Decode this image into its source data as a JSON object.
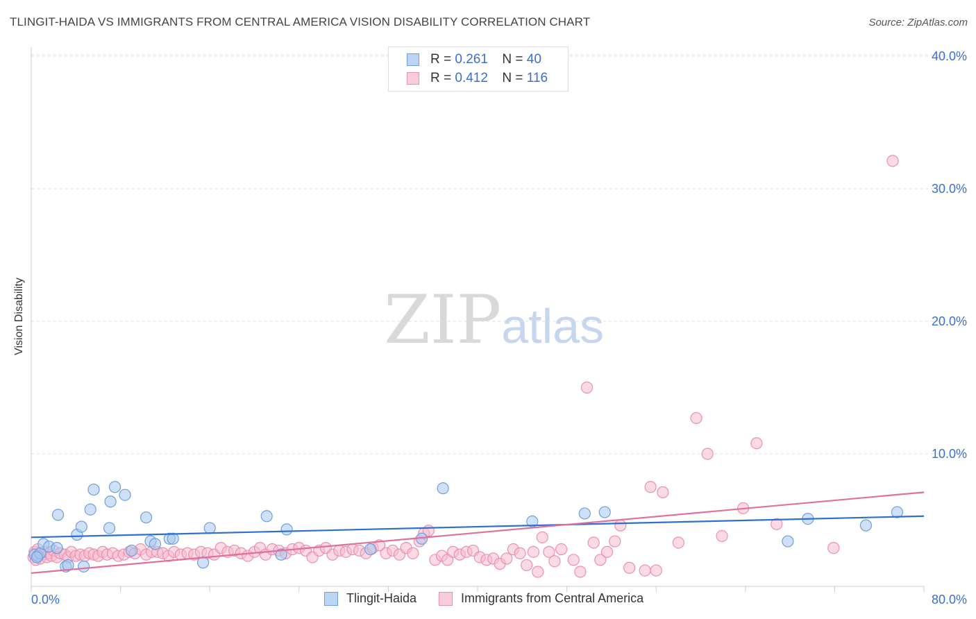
{
  "title": "TLINGIT-HAIDA VS IMMIGRANTS FROM CENTRAL AMERICA VISION DISABILITY CORRELATION CHART",
  "source": "Source: ZipAtlas.com",
  "watermark": {
    "zip": "ZIP",
    "atlas": "atlas"
  },
  "legend": {
    "rows": [
      {
        "r_label": "R =",
        "r_value": "0.261",
        "n_label": "N =",
        "n_value": "40"
      },
      {
        "r_label": "R =",
        "r_value": "0.412",
        "n_label": "N =",
        "n_value": "116"
      }
    ]
  },
  "colors": {
    "blue_fill": "#a8c8f0",
    "blue_edge": "#6e9fdc",
    "blue_line": "#2e6fd0",
    "pink_fill": "#f6bcd0",
    "pink_edge": "#ec8fae",
    "pink_line": "#e0709a",
    "grid": "#dddddd",
    "tick_label": "#3a6fd0"
  },
  "chart_data": {
    "type": "scatter",
    "title": "TLINGIT-HAIDA VS IMMIGRANTS FROM CENTRAL AMERICA VISION DISABILITY CORRELATION CHART",
    "xlabel": "",
    "ylabel": "Vision Disability",
    "xlim": [
      0,
      80
    ],
    "ylim": [
      0,
      42
    ],
    "x_tick_labels": [
      "0.0%",
      "80.0%"
    ],
    "y_ticks": [
      10,
      20,
      30,
      40
    ],
    "y_tick_labels": [
      "10.0%",
      "20.0%",
      "30.0%",
      "40.0%"
    ],
    "grid": "horizontal dashed",
    "series": [
      {
        "name": "Tlingit-Haida",
        "r": 0.261,
        "n": 40,
        "trend": [
          [
            0,
            3.7
          ],
          [
            80,
            5.3
          ]
        ],
        "points": [
          [
            0.3,
            2.4
          ],
          [
            0.6,
            2.3
          ],
          [
            0.8,
            2.5
          ],
          [
            1.1,
            3.2
          ],
          [
            1.6,
            3.0
          ],
          [
            2.3,
            2.9
          ],
          [
            2.4,
            5.4
          ],
          [
            3.1,
            1.5
          ],
          [
            3.3,
            1.6
          ],
          [
            4.1,
            3.9
          ],
          [
            4.5,
            4.5
          ],
          [
            4.7,
            1.5
          ],
          [
            5.3,
            5.8
          ],
          [
            5.6,
            7.3
          ],
          [
            7.0,
            4.4
          ],
          [
            7.1,
            6.4
          ],
          [
            7.5,
            7.5
          ],
          [
            8.4,
            6.9
          ],
          [
            9.0,
            2.7
          ],
          [
            10.3,
            5.2
          ],
          [
            10.7,
            3.4
          ],
          [
            11.1,
            3.2
          ],
          [
            12.4,
            3.6
          ],
          [
            12.7,
            3.6
          ],
          [
            15.4,
            1.8
          ],
          [
            16.0,
            4.4
          ],
          [
            21.1,
            5.3
          ],
          [
            22.4,
            2.4
          ],
          [
            22.9,
            4.3
          ],
          [
            30.4,
            2.8
          ],
          [
            35.0,
            3.6
          ],
          [
            36.9,
            7.4
          ],
          [
            44.9,
            4.9
          ],
          [
            49.6,
            5.5
          ],
          [
            51.4,
            5.6
          ],
          [
            67.8,
            3.4
          ],
          [
            69.6,
            5.1
          ],
          [
            74.8,
            4.6
          ],
          [
            77.6,
            5.6
          ],
          [
            0.5,
            2.2
          ]
        ]
      },
      {
        "name": "Immigrants from Central America",
        "r": 0.412,
        "n": 116,
        "trend": [
          [
            0,
            1.0
          ],
          [
            80,
            7.1
          ]
        ],
        "points": [
          [
            0.2,
            2.2
          ],
          [
            0.3,
            2.6
          ],
          [
            0.4,
            2.0
          ],
          [
            0.6,
            2.8
          ],
          [
            0.8,
            2.1
          ],
          [
            1.0,
            2.4
          ],
          [
            1.2,
            2.6
          ],
          [
            1.4,
            2.2
          ],
          [
            1.6,
            2.5
          ],
          [
            1.8,
            2.3
          ],
          [
            2.0,
            2.7
          ],
          [
            2.3,
            2.2
          ],
          [
            2.6,
            2.5
          ],
          [
            3.0,
            2.4
          ],
          [
            3.3,
            2.2
          ],
          [
            3.6,
            2.6
          ],
          [
            4.0,
            2.3
          ],
          [
            4.4,
            2.4
          ],
          [
            4.8,
            2.3
          ],
          [
            5.2,
            2.5
          ],
          [
            5.6,
            2.4
          ],
          [
            6.0,
            2.3
          ],
          [
            6.4,
            2.6
          ],
          [
            6.8,
            2.4
          ],
          [
            7.3,
            2.5
          ],
          [
            7.8,
            2.3
          ],
          [
            8.3,
            2.4
          ],
          [
            8.8,
            2.6
          ],
          [
            9.3,
            2.5
          ],
          [
            9.8,
            2.8
          ],
          [
            10.3,
            2.4
          ],
          [
            10.8,
            2.6
          ],
          [
            11.3,
            2.6
          ],
          [
            11.8,
            2.5
          ],
          [
            12.3,
            2.3
          ],
          [
            12.8,
            2.6
          ],
          [
            13.4,
            2.4
          ],
          [
            14.0,
            2.5
          ],
          [
            14.6,
            2.4
          ],
          [
            15.2,
            2.6
          ],
          [
            15.8,
            2.5
          ],
          [
            16.4,
            2.4
          ],
          [
            17.0,
            2.9
          ],
          [
            17.6,
            2.6
          ],
          [
            18.2,
            2.7
          ],
          [
            18.8,
            2.5
          ],
          [
            19.4,
            2.3
          ],
          [
            20.0,
            2.6
          ],
          [
            20.5,
            2.9
          ],
          [
            21.0,
            2.4
          ],
          [
            21.6,
            2.8
          ],
          [
            22.2,
            2.7
          ],
          [
            22.8,
            2.5
          ],
          [
            23.4,
            2.8
          ],
          [
            24.0,
            2.9
          ],
          [
            24.6,
            2.7
          ],
          [
            25.2,
            2.2
          ],
          [
            25.8,
            2.7
          ],
          [
            26.4,
            2.9
          ],
          [
            27.0,
            2.4
          ],
          [
            27.6,
            2.7
          ],
          [
            28.2,
            2.6
          ],
          [
            28.8,
            2.8
          ],
          [
            29.4,
            2.7
          ],
          [
            30.0,
            2.5
          ],
          [
            30.6,
            2.9
          ],
          [
            31.2,
            3.1
          ],
          [
            31.8,
            2.5
          ],
          [
            32.4,
            2.7
          ],
          [
            33.0,
            2.4
          ],
          [
            33.6,
            2.9
          ],
          [
            34.2,
            2.5
          ],
          [
            34.8,
            3.4
          ],
          [
            35.2,
            4.0
          ],
          [
            35.6,
            4.2
          ],
          [
            36.2,
            2.0
          ],
          [
            36.8,
            2.3
          ],
          [
            37.3,
            2.0
          ],
          [
            37.8,
            2.6
          ],
          [
            38.4,
            2.4
          ],
          [
            39.0,
            2.6
          ],
          [
            39.6,
            2.7
          ],
          [
            40.2,
            2.2
          ],
          [
            40.8,
            2.0
          ],
          [
            41.4,
            2.1
          ],
          [
            42.0,
            1.7
          ],
          [
            42.6,
            2.1
          ],
          [
            43.2,
            2.8
          ],
          [
            43.8,
            2.5
          ],
          [
            44.4,
            1.6
          ],
          [
            45.0,
            2.6
          ],
          [
            45.4,
            1.1
          ],
          [
            45.8,
            3.7
          ],
          [
            46.4,
            2.6
          ],
          [
            46.9,
            1.9
          ],
          [
            47.5,
            2.8
          ],
          [
            48.6,
            2.0
          ],
          [
            49.2,
            1.1
          ],
          [
            49.8,
            15.0
          ],
          [
            50.4,
            3.3
          ],
          [
            51.0,
            2.0
          ],
          [
            51.6,
            2.6
          ],
          [
            52.3,
            3.4
          ],
          [
            52.8,
            4.6
          ],
          [
            53.6,
            1.4
          ],
          [
            55.0,
            1.2
          ],
          [
            55.5,
            7.5
          ],
          [
            56.0,
            1.2
          ],
          [
            56.6,
            7.1
          ],
          [
            58.0,
            3.3
          ],
          [
            59.6,
            12.7
          ],
          [
            60.6,
            10.0
          ],
          [
            61.9,
            3.8
          ],
          [
            63.8,
            5.9
          ],
          [
            65.0,
            10.8
          ],
          [
            66.8,
            4.7
          ],
          [
            71.9,
            2.9
          ],
          [
            77.2,
            32.1
          ]
        ]
      }
    ]
  },
  "bottom_legend": {
    "items": [
      "Tlingit-Haida",
      "Immigrants from Central America"
    ]
  }
}
